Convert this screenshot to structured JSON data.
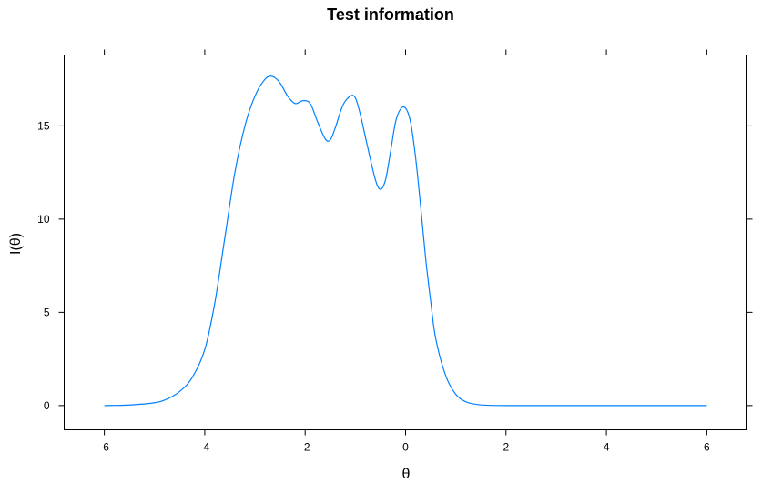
{
  "chart_data": {
    "type": "line",
    "title": "Test information",
    "xlabel": "θ",
    "ylabel": "I(θ)",
    "xlim": [
      -6.8,
      6.8
    ],
    "ylim": [
      -1.3,
      18.8
    ],
    "x_ticks": [
      -6,
      -4,
      -2,
      0,
      2,
      4,
      6
    ],
    "x_tick_labels": [
      "-6",
      "-4",
      "-2",
      "0",
      "2",
      "4",
      "6"
    ],
    "y_ticks": [
      0,
      5,
      10,
      15
    ],
    "y_tick_labels": [
      "0",
      "5",
      "10",
      "15"
    ],
    "grid": false,
    "legend": "none",
    "line_color": "#0080ff",
    "x": [
      -6,
      -5.5,
      -5,
      -4.75,
      -4.5,
      -4.25,
      -4,
      -3.8,
      -3.6,
      -3.4,
      -3.2,
      -3.0,
      -2.8,
      -2.65,
      -2.5,
      -2.35,
      -2.2,
      -2.05,
      -1.9,
      -1.75,
      -1.6,
      -1.5,
      -1.4,
      -1.25,
      -1.1,
      -1.0,
      -0.9,
      -0.75,
      -0.6,
      -0.5,
      -0.4,
      -0.3,
      -0.2,
      -0.1,
      0.0,
      0.1,
      0.2,
      0.3,
      0.4,
      0.5,
      0.6,
      0.8,
      1.0,
      1.2,
      1.4,
      1.6,
      2.0,
      2.5,
      3.0,
      4.0,
      5.0,
      6.0
    ],
    "values": [
      0.0,
      0.03,
      0.15,
      0.35,
      0.75,
      1.5,
      3.0,
      5.5,
      9.0,
      12.5,
      15.0,
      16.6,
      17.5,
      17.65,
      17.3,
      16.6,
      16.2,
      16.35,
      16.2,
      15.2,
      14.3,
      14.25,
      14.9,
      16.1,
      16.6,
      16.5,
      15.6,
      13.8,
      12.1,
      11.6,
      12.1,
      13.6,
      15.2,
      15.9,
      15.95,
      15.2,
      13.3,
      10.7,
      7.9,
      5.6,
      3.6,
      1.6,
      0.6,
      0.2,
      0.07,
      0.02,
      0.0,
      0.0,
      0.0,
      0.0,
      0.0,
      0.0
    ]
  }
}
